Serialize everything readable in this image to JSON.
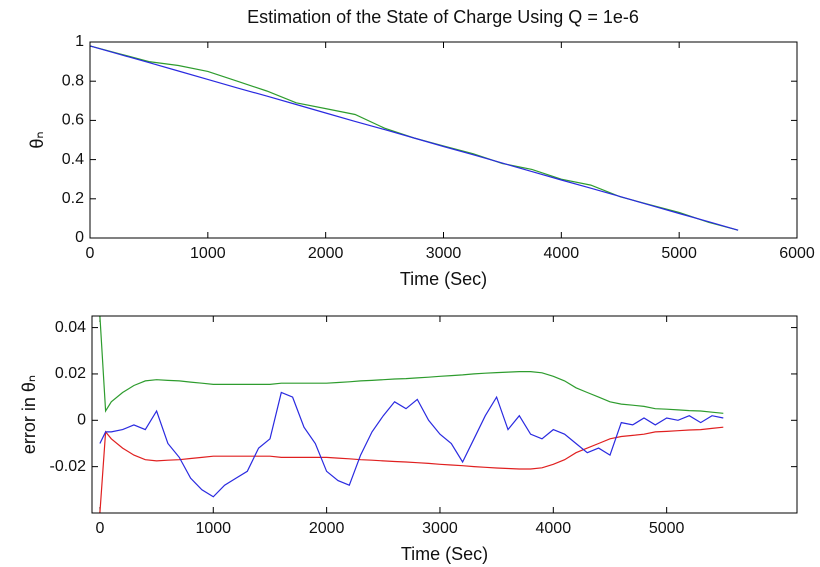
{
  "chart_data": [
    {
      "type": "line",
      "title": "Estimation of the State of Charge Using Q = 1e-6",
      "xlabel": "Time (Sec)",
      "ylabel": "θₙ",
      "x": [
        0,
        250,
        500,
        750,
        1000,
        1250,
        1500,
        1750,
        2000,
        2250,
        2500,
        2750,
        3000,
        3250,
        3500,
        3750,
        4000,
        4250,
        4500,
        4750,
        5000,
        5250,
        5500
      ],
      "series": [
        {
          "color": "#2e9c2e",
          "values": [
            0.98,
            0.94,
            0.9,
            0.88,
            0.85,
            0.8,
            0.75,
            0.69,
            0.66,
            0.63,
            0.56,
            0.51,
            0.47,
            0.43,
            0.38,
            0.35,
            0.3,
            0.27,
            0.21,
            0.17,
            0.13,
            0.08,
            0.04
          ]
        },
        {
          "color": "#2a2ae0",
          "values": [
            0.98,
            0.937,
            0.895,
            0.852,
            0.809,
            0.766,
            0.724,
            0.681,
            0.638,
            0.595,
            0.553,
            0.51,
            0.467,
            0.425,
            0.382,
            0.339,
            0.296,
            0.254,
            0.211,
            0.168,
            0.125,
            0.083,
            0.04
          ]
        }
      ],
      "xlim": [
        0,
        6000
      ],
      "xticks": [
        0,
        1000,
        2000,
        3000,
        4000,
        5000,
        6000
      ],
      "ylim": [
        0,
        1
      ],
      "yticks": [
        0,
        0.2,
        0.4,
        0.6,
        0.8,
        1
      ]
    },
    {
      "type": "line",
      "xlabel": "Time (Sec)",
      "ylabel": "error in θₙ",
      "x": [
        0,
        50,
        100,
        200,
        300,
        400,
        500,
        600,
        700,
        800,
        900,
        1000,
        1100,
        1200,
        1300,
        1400,
        1500,
        1600,
        1700,
        1800,
        1900,
        2000,
        2100,
        2200,
        2300,
        2400,
        2500,
        2600,
        2700,
        2800,
        2900,
        3000,
        3100,
        3200,
        3300,
        3400,
        3500,
        3600,
        3700,
        3800,
        3900,
        4000,
        4100,
        4200,
        4300,
        4400,
        4500,
        4600,
        4700,
        4800,
        4900,
        5000,
        5100,
        5200,
        5300,
        5400,
        5500
      ],
      "series": [
        {
          "color": "#2e9c2e",
          "values": [
            0.045,
            0.004,
            0.008,
            0.012,
            0.015,
            0.017,
            0.0175,
            0.0172,
            0.017,
            0.0165,
            0.016,
            0.0155,
            0.0155,
            0.0155,
            0.0155,
            0.0155,
            0.0155,
            0.016,
            0.016,
            0.016,
            0.016,
            0.016,
            0.0163,
            0.0166,
            0.017,
            0.0172,
            0.0175,
            0.0178,
            0.018,
            0.0183,
            0.0186,
            0.019,
            0.0193,
            0.0196,
            0.02,
            0.0203,
            0.0206,
            0.0208,
            0.021,
            0.021,
            0.0205,
            0.019,
            0.017,
            0.014,
            0.012,
            0.01,
            0.008,
            0.007,
            0.0065,
            0.006,
            0.005,
            0.0048,
            0.0045,
            0.0042,
            0.004,
            0.0035,
            0.003
          ]
        },
        {
          "color": "#e02020",
          "values": [
            -0.04,
            -0.005,
            -0.008,
            -0.012,
            -0.015,
            -0.017,
            -0.0175,
            -0.0172,
            -0.017,
            -0.0165,
            -0.016,
            -0.0155,
            -0.0155,
            -0.0155,
            -0.0155,
            -0.0155,
            -0.0155,
            -0.016,
            -0.016,
            -0.016,
            -0.016,
            -0.016,
            -0.0163,
            -0.0166,
            -0.017,
            -0.0172,
            -0.0175,
            -0.0178,
            -0.018,
            -0.0183,
            -0.0186,
            -0.019,
            -0.0193,
            -0.0196,
            -0.02,
            -0.0203,
            -0.0206,
            -0.0208,
            -0.021,
            -0.021,
            -0.0205,
            -0.019,
            -0.017,
            -0.014,
            -0.012,
            -0.01,
            -0.008,
            -0.007,
            -0.0065,
            -0.006,
            -0.005,
            -0.0048,
            -0.0045,
            -0.0042,
            -0.004,
            -0.0035,
            -0.003
          ]
        },
        {
          "color": "#2a2ae0",
          "values": [
            -0.01,
            -0.005,
            -0.005,
            -0.004,
            -0.002,
            -0.004,
            0.004,
            -0.01,
            -0.016,
            -0.025,
            -0.03,
            -0.033,
            -0.028,
            -0.025,
            -0.022,
            -0.012,
            -0.008,
            0.012,
            0.01,
            -0.003,
            -0.01,
            -0.022,
            -0.026,
            -0.028,
            -0.015,
            -0.005,
            0.002,
            0.008,
            0.005,
            0.009,
            0,
            -0.006,
            -0.01,
            -0.018,
            -0.008,
            0.002,
            0.01,
            -0.004,
            0.002,
            -0.006,
            -0.008,
            -0.004,
            -0.006,
            -0.01,
            -0.014,
            -0.012,
            -0.015,
            -0.001,
            -0.002,
            0.001,
            -0.002,
            0.001,
            0,
            0.002,
            -0.001,
            0.002,
            0.001
          ]
        }
      ],
      "xlim": [
        -70,
        6150
      ],
      "xticks": [
        0,
        1000,
        2000,
        3000,
        4000,
        5000
      ],
      "ylim": [
        -0.04,
        0.045
      ],
      "yticks": [
        -0.02,
        0,
        0.02,
        0.04
      ]
    }
  ]
}
